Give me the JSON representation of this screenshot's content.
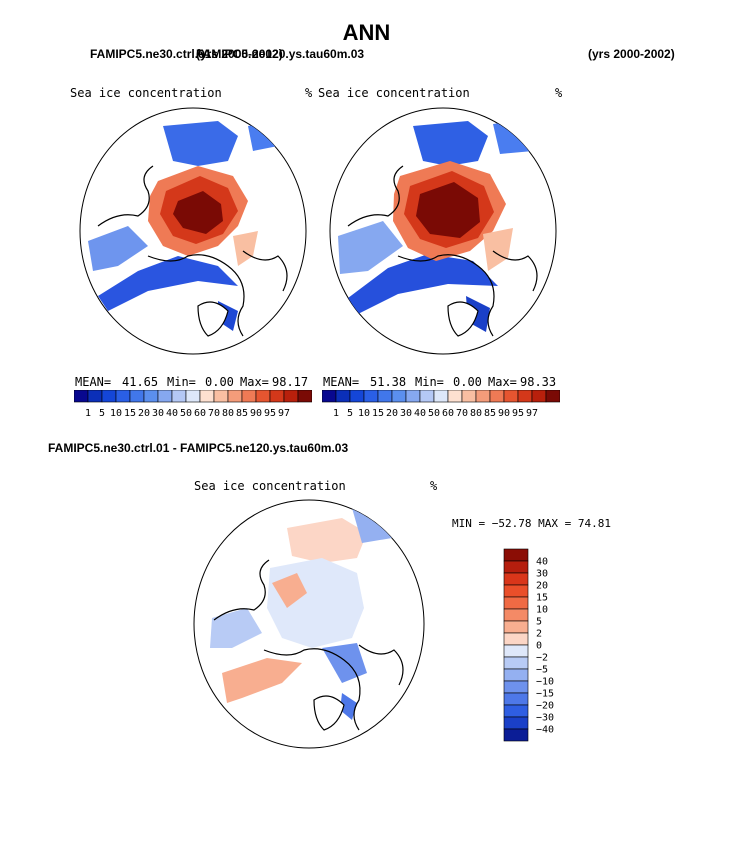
{
  "title": "ANN",
  "years": "(yrs 2000-2002)",
  "panels": [
    {
      "case": "FAMIPC5.ne30.ctrl.01",
      "years": "(yrs 2000-2002)",
      "variable": "Sea ice concentration",
      "units": "%",
      "stats": {
        "mean_label": "MEAN=",
        "mean": "41.65",
        "min_label": "Min=",
        "min": "0.00",
        "max_label": "Max=",
        "max": "98.17"
      }
    },
    {
      "case": "FAMIPC5.ne120.ys.tau60m.03",
      "years": "(yrs 2000-2002)",
      "variable": "Sea ice concentration",
      "units": "%",
      "stats": {
        "mean_label": "MEAN=",
        "mean": "51.38",
        "min_label": "Min=",
        "min": "0.00",
        "max_label": "Max=",
        "max": "98.33"
      }
    }
  ],
  "diff": {
    "title": "FAMIPC5.ne30.ctrl.01 - FAMIPC5.ne120.ys.tau60m.03",
    "variable": "Sea ice concentration",
    "units": "%",
    "minmax": "MIN = −52.78 MAX =  74.81"
  },
  "colorbar_abs": {
    "labels": [
      "1",
      "5",
      "10",
      "15",
      "20",
      "30",
      "40",
      "50",
      "60",
      "70",
      "80",
      "85",
      "90",
      "95",
      "97"
    ],
    "colors": [
      "#08088f",
      "#0b2fb8",
      "#1446d8",
      "#2a5fe6",
      "#4177ea",
      "#5b8fee",
      "#86a8f0",
      "#b4c8f5",
      "#dde7f9",
      "#fde0d0",
      "#f9bfa2",
      "#f49c7a",
      "#ef7a55",
      "#e65530",
      "#d4381a",
      "#b8200c",
      "#7a0a05"
    ]
  },
  "colorbar_diff": {
    "labels": [
      "40",
      "30",
      "20",
      "15",
      "10",
      "5",
      "2",
      "0",
      "−2",
      "−5",
      "−10",
      "−15",
      "−20",
      "−30",
      "−40"
    ],
    "colors": [
      "#8b0d05",
      "#b51e0e",
      "#d9361a",
      "#ea4f2a",
      "#f06a44",
      "#f48a66",
      "#f8ae90",
      "#fcd6c6",
      "#dfe8fa",
      "#b8cbf5",
      "#94b0f1",
      "#6e92ed",
      "#4e78e8",
      "#2f5ee2",
      "#1a40c8",
      "#0b1d96"
    ]
  }
}
